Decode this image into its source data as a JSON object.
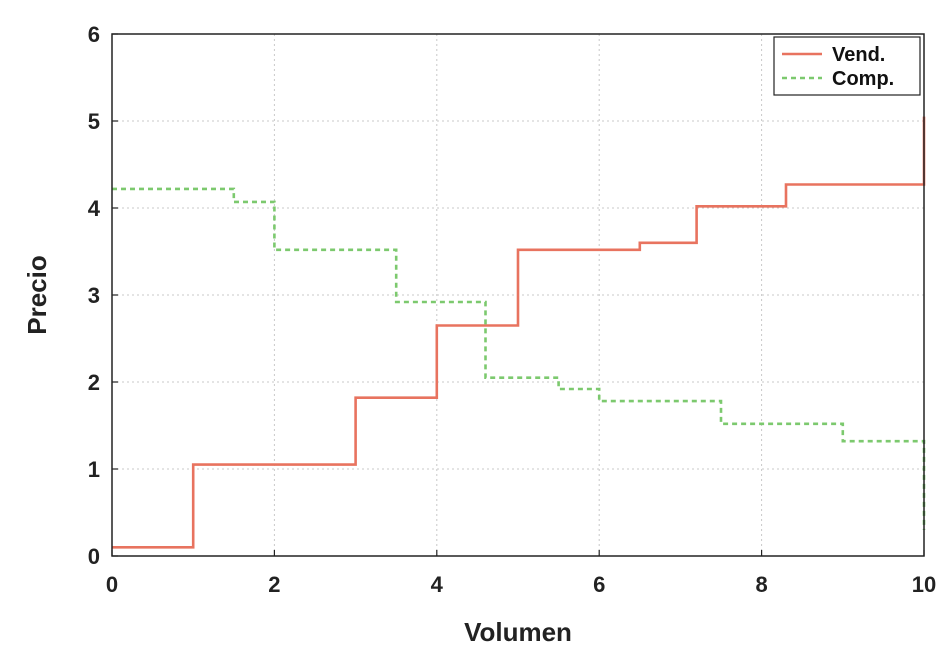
{
  "chart_data": {
    "type": "line",
    "step": true,
    "xlabel": "Volumen",
    "ylabel": "Precio",
    "xlim": [
      0,
      10
    ],
    "ylim": [
      0,
      6
    ],
    "xticks": [
      0,
      2,
      4,
      6,
      8,
      10
    ],
    "yticks": [
      0,
      1,
      2,
      3,
      4,
      5,
      6
    ],
    "xtick_labels": [
      "0",
      "2",
      "4",
      "6",
      "8",
      "10"
    ],
    "ytick_labels": [
      "0",
      "1",
      "2",
      "3",
      "4",
      "5",
      "6"
    ],
    "grid": true,
    "legend_position": "top-right",
    "series": [
      {
        "name": "Vend.",
        "color": "#e8735f",
        "style": "solid",
        "points": [
          [
            0,
            0.1
          ],
          [
            1,
            0.1
          ],
          [
            1,
            1.05
          ],
          [
            3,
            1.05
          ],
          [
            3,
            1.82
          ],
          [
            4,
            1.82
          ],
          [
            4,
            2.65
          ],
          [
            5,
            2.65
          ],
          [
            5,
            3.52
          ],
          [
            6.5,
            3.52
          ],
          [
            6.5,
            3.6
          ],
          [
            7.2,
            3.6
          ],
          [
            7.2,
            4.02
          ],
          [
            8.3,
            4.02
          ],
          [
            8.3,
            4.27
          ],
          [
            10,
            4.27
          ],
          [
            10,
            5.05
          ]
        ]
      },
      {
        "name": "Comp.",
        "color": "#7cc96e",
        "style": "dashed",
        "points": [
          [
            0,
            4.22
          ],
          [
            1.5,
            4.22
          ],
          [
            1.5,
            4.07
          ],
          [
            2,
            4.07
          ],
          [
            2,
            3.52
          ],
          [
            3.5,
            3.52
          ],
          [
            3.5,
            2.92
          ],
          [
            4.6,
            2.92
          ],
          [
            4.6,
            2.05
          ],
          [
            5.5,
            2.05
          ],
          [
            5.5,
            1.92
          ],
          [
            6,
            1.92
          ],
          [
            6,
            1.78
          ],
          [
            7.5,
            1.78
          ],
          [
            7.5,
            1.52
          ],
          [
            9,
            1.52
          ],
          [
            9,
            1.32
          ],
          [
            10,
            1.32
          ],
          [
            10,
            0.3
          ]
        ]
      }
    ]
  }
}
